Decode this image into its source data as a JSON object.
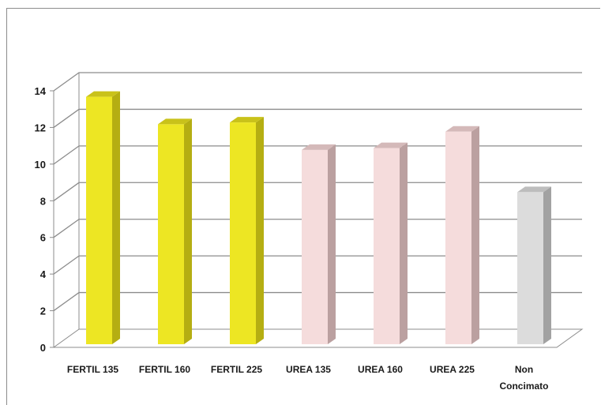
{
  "chart_data": {
    "type": "bar",
    "title": "",
    "xlabel": "",
    "ylabel": "",
    "ylim": [
      0,
      14
    ],
    "yticks": [
      0,
      2,
      4,
      6,
      8,
      10,
      12,
      14
    ],
    "grid": true,
    "legend": "none",
    "three_d": true,
    "categories": [
      [
        "FERTIL 135"
      ],
      [
        "FERTIL 160"
      ],
      [
        "FERTIL 225"
      ],
      [
        "UREA 135"
      ],
      [
        "UREA 160"
      ],
      [
        "UREA 225"
      ],
      [
        "Non",
        "Concimato"
      ]
    ],
    "values": [
      13.5,
      12.0,
      12.1,
      10.6,
      10.7,
      11.6,
      8.3
    ],
    "colors": [
      {
        "front": "#ede623",
        "side": "#b5ae12",
        "top": "#c9c21a"
      },
      {
        "front": "#ede623",
        "side": "#b5ae12",
        "top": "#c9c21a"
      },
      {
        "front": "#ede623",
        "side": "#b5ae12",
        "top": "#c9c21a"
      },
      {
        "front": "#f5dcdc",
        "side": "#bba0a0",
        "top": "#d4b9b9"
      },
      {
        "front": "#f5dcdc",
        "side": "#bba0a0",
        "top": "#d4b9b9"
      },
      {
        "front": "#f5dcdc",
        "side": "#bba0a0",
        "top": "#d4b9b9"
      },
      {
        "front": "#dcdcdc",
        "side": "#a2a2a2",
        "top": "#bdbdbd"
      }
    ],
    "gridline_color": "#8c8c8c"
  }
}
